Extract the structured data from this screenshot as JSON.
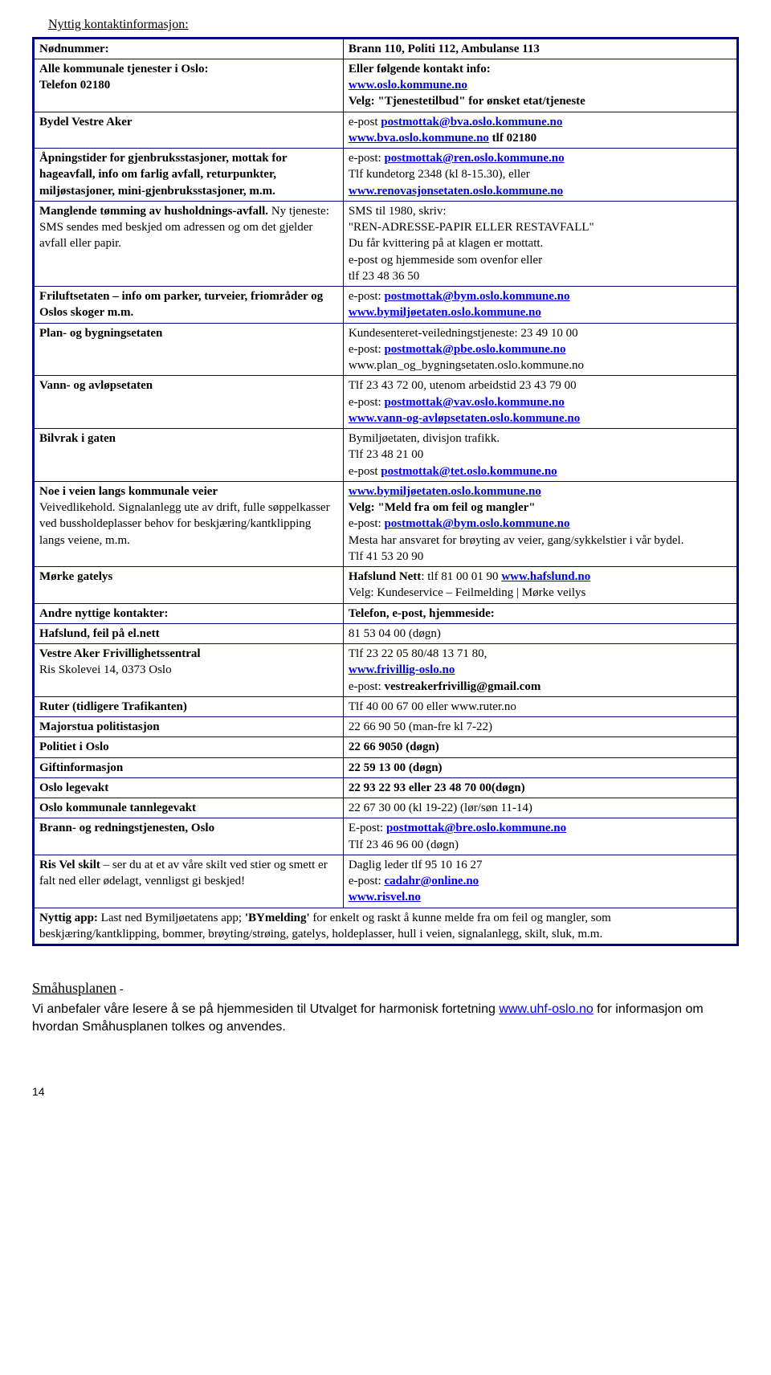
{
  "title": "Nyttig kontaktinformasjon:",
  "rows": [
    {
      "left": [
        {
          "t": "Nødnummer:",
          "b": true
        }
      ],
      "right": [
        {
          "t": "Brann 110, Politi 112, Ambulanse 113",
          "b": true
        }
      ]
    },
    {
      "left": [
        {
          "t": "Alle kommunale tjenester i Oslo:",
          "b": true
        },
        {
          "t": "Telefon 02180",
          "b": true
        }
      ],
      "right": [
        {
          "t": "Eller følgende kontakt info:",
          "b": true
        },
        {
          "t": "www.oslo.kommune.no",
          "b": true,
          "link": true
        },
        {
          "t": "Velg: \"Tjenestetilbud\" for ønsket etat/tjeneste",
          "b": true
        }
      ]
    },
    {
      "left": [
        {
          "t": "Bydel Vestre Aker",
          "b": true
        }
      ],
      "right": [
        {
          "compound": [
            {
              "t": "e-post ",
              "b": false
            },
            {
              "t": "postmottak@bva.oslo.kommune.no",
              "b": true,
              "link": true
            }
          ]
        },
        {
          "compound": [
            {
              "t": "www.bva.oslo.kommune.no",
              "b": true,
              "link": true
            },
            {
              "t": "           tlf 02180",
              "b": true
            }
          ]
        }
      ]
    },
    {
      "left": [
        {
          "t": "Åpningstider for gjenbruksstasjoner, mottak for hageavfall, info om farlig avfall, returpunkter, miljøstasjoner, mini-gjenbruksstasjoner, m.m.",
          "b": true
        }
      ],
      "right": [
        {
          "compound": [
            {
              "t": "e-post: ",
              "b": false
            },
            {
              "t": "postmottak@ren.oslo.kommune.no",
              "b": true,
              "link": true
            }
          ]
        },
        {
          "t": "Tlf kundetorg 2348 (kl 8-15.30), eller",
          "b": false
        },
        {
          "t": "www.renovasjonsetaten.oslo.kommune.no",
          "b": true,
          "link": true
        }
      ]
    },
    {
      "left": [
        {
          "compound": [
            {
              "t": "Manglende tømming av husholdnings-avfall. ",
              "b": true
            },
            {
              "t": "Ny tjeneste: SMS sendes med beskjed om adressen og om det gjelder avfall eller papir.",
              "b": false
            }
          ]
        }
      ],
      "right": [
        {
          "t": "SMS til 1980, skriv:",
          "b": false
        },
        {
          "t": "\"REN-ADRESSE-PAPIR ELLER RESTAVFALL\"",
          "b": false
        },
        {
          "t": "Du får kvittering på at klagen er mottatt.",
          "b": false
        },
        {
          "t": "e-post og hjemmeside som ovenfor eller",
          "b": false
        },
        {
          "t": " tlf 23 48 36 50",
          "b": false
        }
      ]
    },
    {
      "left": [
        {
          "t": "Friluftsetaten – info om parker, turveier, friområder og Oslos skoger m.m.",
          "b": true
        }
      ],
      "right": [
        {
          "compound": [
            {
              "t": "e-post: ",
              "b": false
            },
            {
              "t": "postmottak@bym.oslo.kommune.no",
              "b": true,
              "link": true
            }
          ]
        },
        {
          "t": "www.bymiljøetaten.oslo.kommune.no",
          "b": true,
          "link": true
        }
      ]
    },
    {
      "left": [
        {
          "t": "Plan- og bygningsetaten",
          "b": true
        }
      ],
      "right": [
        {
          "t": "Kundesenteret-veiledningstjeneste: 23 49 10 00",
          "b": false
        },
        {
          "compound": [
            {
              "t": "e-post: ",
              "b": false
            },
            {
              "t": "postmottak@pbe.oslo.kommune.no",
              "b": true,
              "link": true
            }
          ]
        },
        {
          "t": "www.plan_og_bygningsetaten.oslo.kommune.no",
          "b": false
        }
      ]
    },
    {
      "left": [
        {
          "t": "Vann- og avløpsetaten",
          "b": true
        }
      ],
      "right": [
        {
          "t": "Tlf 23 43 72 00, utenom arbeidstid 23 43 79 00",
          "b": false
        },
        {
          "compound": [
            {
              "t": "e-post: ",
              "b": false
            },
            {
              "t": "postmottak@vav.oslo.kommune.no",
              "b": true,
              "link": true
            }
          ]
        },
        {
          "t": "www.vann-og-avløpsetaten.oslo.kommune.no",
          "b": true,
          "link": true
        }
      ]
    },
    {
      "left": [
        {
          "t": "Bilvrak i gaten",
          "b": true
        }
      ],
      "right": [
        {
          "t": "Bymiljøetaten, divisjon trafikk.",
          "b": false
        },
        {
          "t": "Tlf 23 48 21 00",
          "b": false
        },
        {
          "compound": [
            {
              "t": "e-post ",
              "b": false
            },
            {
              "t": "postmottak@tet.oslo.kommune.no",
              "b": true,
              "link": true
            }
          ]
        }
      ]
    },
    {
      "left": [
        {
          "t": "Noe i veien langs kommunale veier",
          "b": true
        },
        {
          "t": "Veivedlikehold. Signalanlegg ute av drift, fulle søppelkasser ved bussholdeplasser behov for beskjæring/kantklipping langs veiene, m.m.",
          "b": false
        }
      ],
      "right": [
        {
          "t": "www.bymiljøetaten.oslo.kommune.no",
          "b": true,
          "link": true
        },
        {
          "t": "Velg: \"Meld fra om feil og mangler\"",
          "b": true
        },
        {
          "compound": [
            {
              "t": "e-post: ",
              "b": false
            },
            {
              "t": "postmottak@bym.oslo.kommune.no",
              "b": true,
              "link": true
            }
          ]
        },
        {
          "t": "Mesta har ansvaret for brøyting av veier, gang/sykkelstier i vår bydel.",
          "b": false
        },
        {
          "t": "Tlf  41 53 20 90",
          "b": false
        }
      ]
    },
    {
      "left": [
        {
          "t": "Mørke gatelys",
          "b": true
        }
      ],
      "right": [
        {
          "compound": [
            {
              "t": "Hafslund Nett",
              "b": true
            },
            {
              "t": ": tlf 81 00 01 90 ",
              "b": false
            },
            {
              "t": "www.hafslund.no",
              "b": true,
              "link": true
            }
          ]
        },
        {
          "t": "Velg: Kundeservice – Feilmelding | Mørke veilys",
          "b": false
        }
      ]
    },
    {
      "left": [
        {
          "t": "Andre nyttige kontakter:",
          "b": true
        }
      ],
      "right": [
        {
          "t": "Telefon, e-post, hjemmeside:",
          "b": true
        }
      ]
    },
    {
      "left": [
        {
          "t": "Hafslund, feil på el.nett",
          "b": true
        }
      ],
      "right": [
        {
          "t": "81 53 04 00 (døgn)",
          "b": false
        }
      ]
    },
    {
      "left": [
        {
          "t": "Vestre Aker Frivillighetssentral",
          "b": true
        },
        {
          "t": "Ris Skolevei 14, 0373 Oslo",
          "b": false
        }
      ],
      "right": [
        {
          "t": "Tlf 23 22 05 80/48 13 71 80,",
          "b": false
        },
        {
          "t": "www.frivillig-oslo.no",
          "b": true,
          "link": true
        },
        {
          "compound": [
            {
              "t": "e-post: ",
              "b": false
            },
            {
              "t": "vestreakerfrivillig@gmail.com",
              "b": true
            }
          ]
        }
      ]
    },
    {
      "left": [
        {
          "t": "Ruter (tidligere Trafikanten)",
          "b": true
        }
      ],
      "right": [
        {
          "t": "Tlf  40 00 67 00 eller www.ruter.no",
          "b": false
        }
      ]
    },
    {
      "left": [
        {
          "t": "Majorstua politistasjon",
          "b": true
        }
      ],
      "right": [
        {
          "t": "22 66 90 50 (man-fre kl 7-22)",
          "b": false
        }
      ]
    },
    {
      "left": [
        {
          "t": "Politiet i Oslo",
          "b": true
        }
      ],
      "right": [
        {
          "t": "22 66 9050 (døgn)",
          "b": true
        }
      ]
    },
    {
      "left": [
        {
          "t": "Giftinformasjon",
          "b": true
        }
      ],
      "right": [
        {
          "t": "22 59 13 00 (døgn)",
          "b": true
        }
      ]
    },
    {
      "left": [
        {
          "t": "Oslo legevakt",
          "b": true
        }
      ],
      "right": [
        {
          "t": "22 93 22 93 eller 23 48 70 00(døgn)",
          "b": true
        }
      ]
    },
    {
      "left": [
        {
          "t": "Oslo kommunale tannlegevakt",
          "b": true
        }
      ],
      "right": [
        {
          "t": "22 67 30 00 (kl 19-22) (lør/søn 11-14)",
          "b": false
        }
      ]
    },
    {
      "left": [
        {
          "t": "Brann- og redningstjenesten, Oslo",
          "b": true
        }
      ],
      "right": [
        {
          "compound": [
            {
              "t": "E-post: ",
              "b": false
            },
            {
              "t": "postmottak@bre.oslo.kommune.no",
              "b": true,
              "link": true
            }
          ]
        },
        {
          "t": "Tlf 23 46 96 00 (døgn)",
          "b": false
        }
      ]
    },
    {
      "left": [
        {
          "compound": [
            {
              "t": "Ris Vel skilt ",
              "b": true
            },
            {
              "t": "– ser du at et av våre skilt ved stier og smett er falt ned eller ødelagt, vennligst gi beskjed!",
              "b": false
            }
          ]
        }
      ],
      "right": [
        {
          "t": "Daglig leder tlf  95 10 16 27",
          "b": false
        },
        {
          "compound": [
            {
              "t": "e-post: ",
              "b": false
            },
            {
              "t": "cadahr@online.no",
              "b": true,
              "link": true
            }
          ]
        },
        {
          "t": "www.risvel.no",
          "b": true,
          "link": true
        }
      ]
    }
  ],
  "merged_note": {
    "parts": [
      {
        "t": "Nyttig app: ",
        "b": true
      },
      {
        "t": "Last ned Bymiljøetatens app; ",
        "b": false
      },
      {
        "t": "'BYmelding'",
        "b": true
      },
      {
        "t": " for enkelt og raskt å kunne melde fra om feil og mangler, som beskjæring/kantklipping, bommer, brøyting/strøing, gatelys, holdeplasser, hull i veien, signalanlegg, skilt, sluk, m.m.",
        "b": false
      }
    ]
  },
  "footer": {
    "title": "Småhusplanen",
    "dash": " -",
    "body_pre": "Vi anbefaler våre lesere å se på hjemmesiden til Utvalget for harmonisk fortetning ",
    "link": "www.uhf-oslo.no",
    "body_post": " for informasjon om hvordan Småhusplanen tolkes og anvendes."
  },
  "page_number": "14"
}
